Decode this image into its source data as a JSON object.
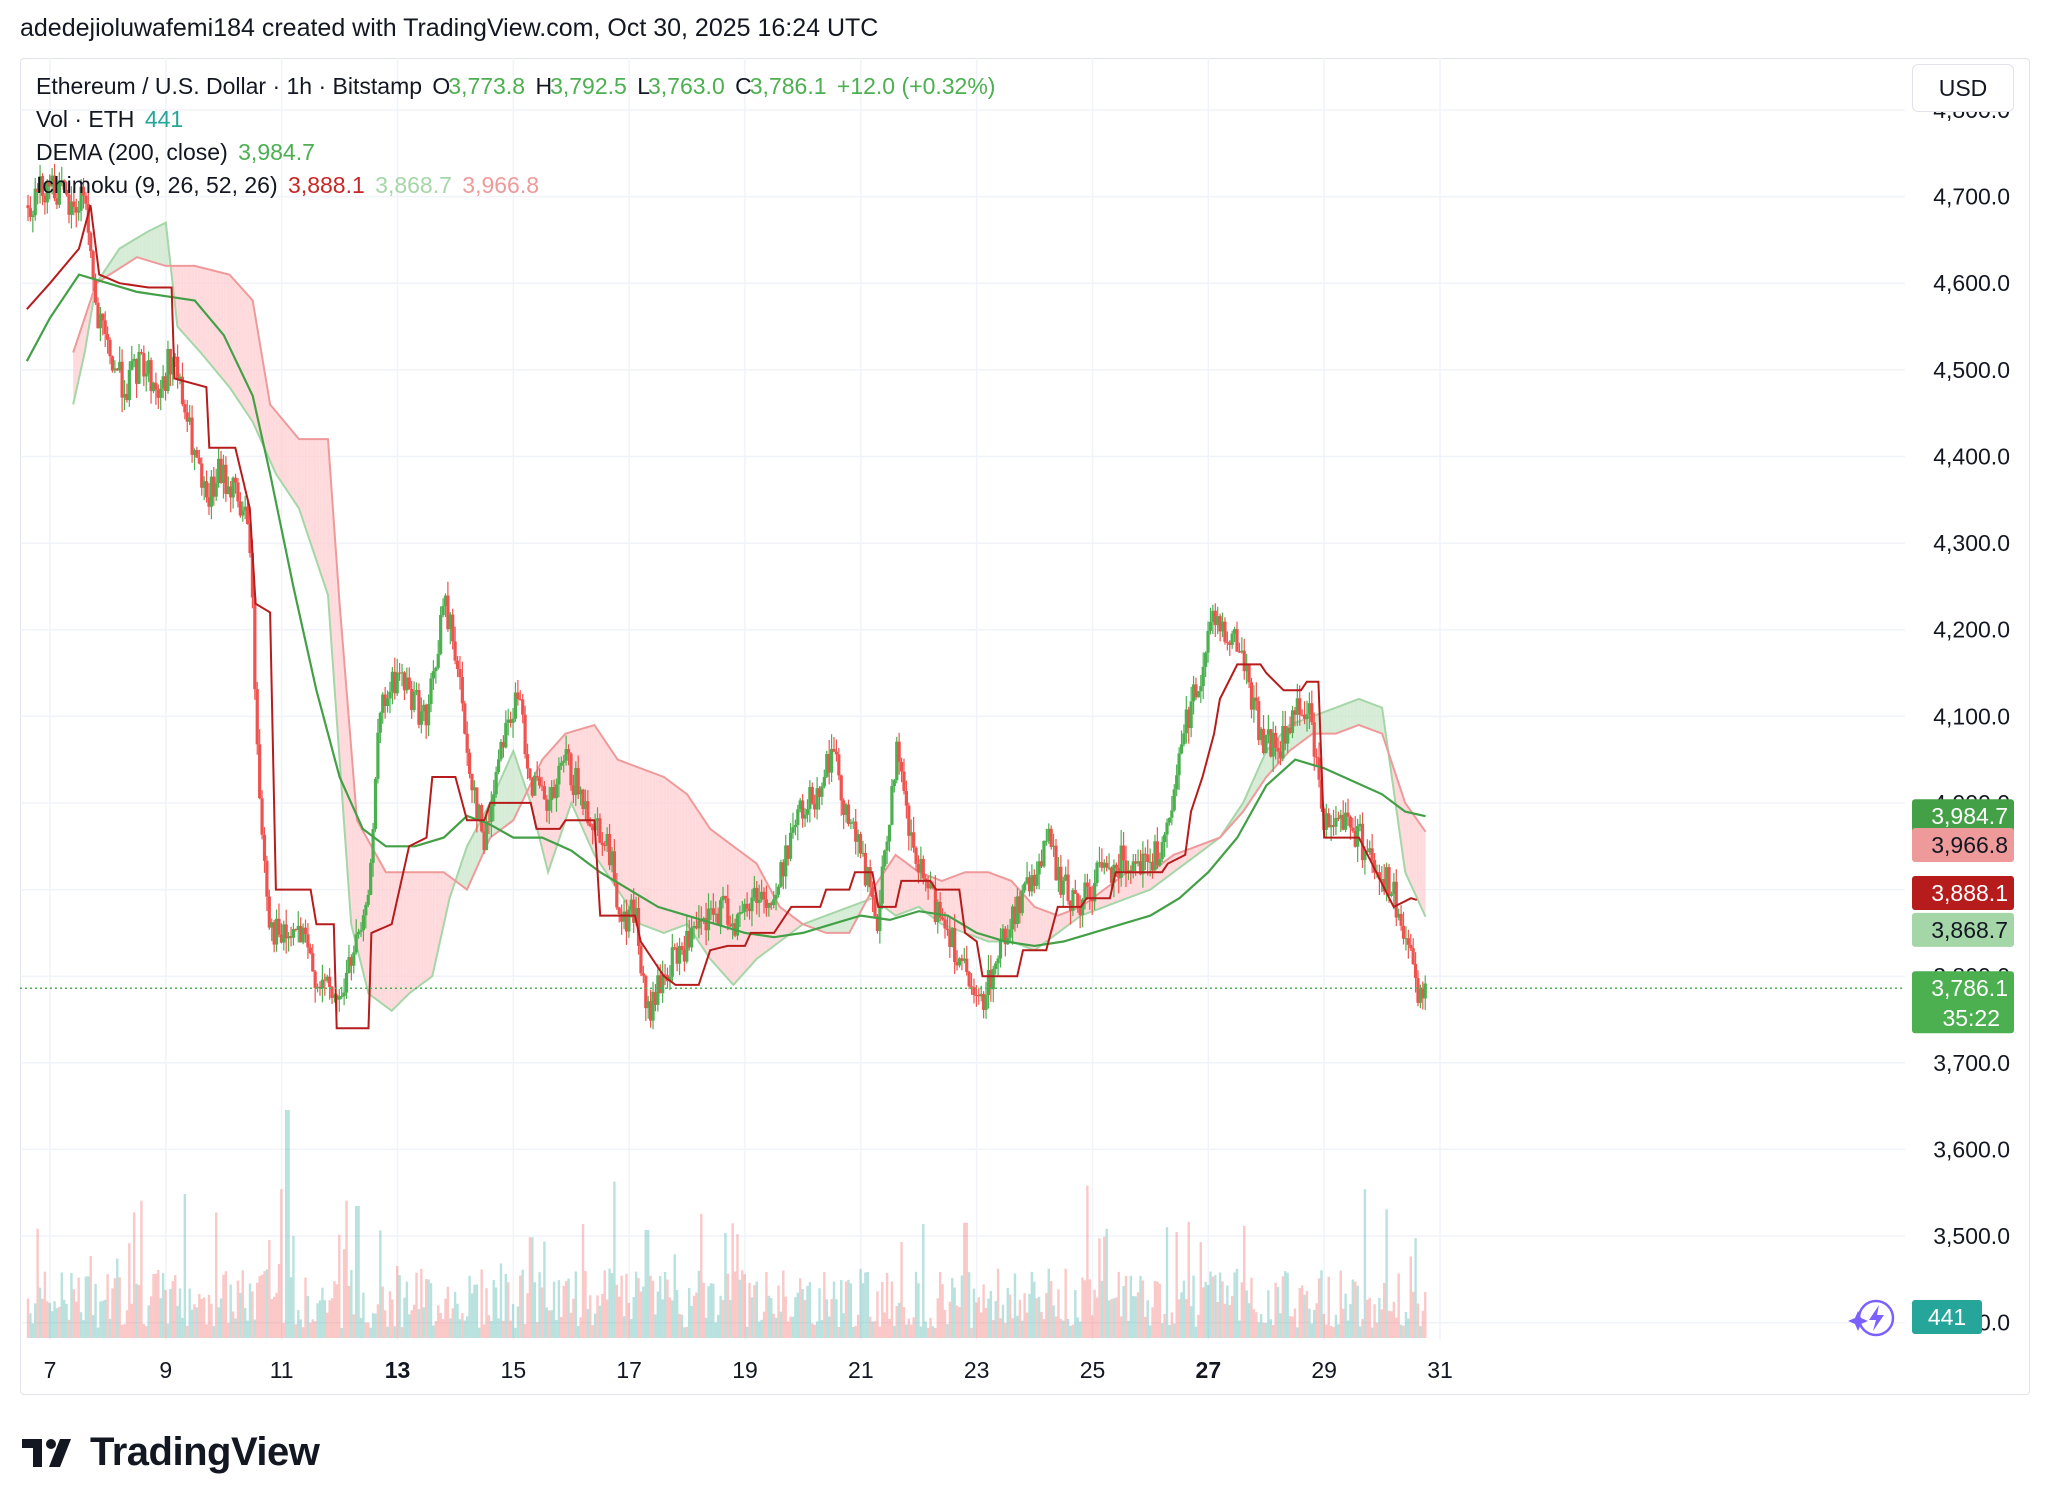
{
  "header": {
    "created_by": "adedejioluwafemi184 created with TradingView.com, Oct 30, 2025 16:24 UTC"
  },
  "legend": {
    "symbol": "Ethereum / U.S. Dollar · 1h · Bitstamp",
    "o_label": "O",
    "o_value": "3,773.8",
    "h_label": "H",
    "h_value": "3,792.5",
    "l_label": "L",
    "l_value": "3,763.0",
    "c_label": "C",
    "c_value": "3,786.1",
    "change": "+12.0 (+0.32%)",
    "vol_label": "Vol · ETH",
    "vol_value": "441",
    "dema_label": "DEMA (200, close)",
    "dema_value": "3,984.7",
    "ichimoku_label": "Ichimoku (9, 26, 52, 26)",
    "ichimoku_base": "3,888.1",
    "ichimoku_span_a": "3,868.7",
    "ichimoku_span_b": "3,966.8"
  },
  "currency_button": "USD",
  "price_badges": {
    "dema": "3,984.7",
    "span_b": "3,966.8",
    "base": "3,888.1",
    "span_a": "3,868.7",
    "last": "3,786.1",
    "countdown": "35:22",
    "volume": "441"
  },
  "brand": "TradingView",
  "colors": {
    "up": "#26a69a",
    "up_candle": "#4caf50",
    "down": "#ef5350",
    "dema": "#43a047",
    "base_line": "#b71c1c",
    "cloud_green": "#c8e6c9",
    "cloud_red": "#ffcdd2",
    "last_price": "#4caf50",
    "volume_teal": "#26a69a"
  },
  "chart_data": {
    "type": "candlestick",
    "title": "Ethereum / U.S. Dollar · 1h · Bitstamp",
    "y_ticks": [
      3400,
      3500,
      3600,
      3700,
      3800,
      3900,
      4000,
      4100,
      4200,
      4300,
      4400,
      4500,
      4600,
      4700,
      4800
    ],
    "y_tick_labels": [
      "3,400.0",
      "3,500.0",
      "3,600.0",
      "3,700.0",
      "3,800.0",
      "3,900.0",
      "4,000.0",
      "4,100.0",
      "4,200.0",
      "4,300.0",
      "4,400.0",
      "4,500.0",
      "4,600.0",
      "4,700.0",
      "4,800.0"
    ],
    "ylim": [
      3380,
      4860
    ],
    "x_labels": [
      {
        "day": 7,
        "text": "7",
        "bold": false
      },
      {
        "day": 9,
        "text": "9",
        "bold": false
      },
      {
        "day": 11,
        "text": "11",
        "bold": false
      },
      {
        "day": 13,
        "text": "13",
        "bold": true
      },
      {
        "day": 15,
        "text": "15",
        "bold": false
      },
      {
        "day": 17,
        "text": "17",
        "bold": false
      },
      {
        "day": 19,
        "text": "19",
        "bold": false
      },
      {
        "day": 21,
        "text": "21",
        "bold": false
      },
      {
        "day": 23,
        "text": "23",
        "bold": false
      },
      {
        "day": 25,
        "text": "25",
        "bold": false
      },
      {
        "day": 27,
        "text": "27",
        "bold": true
      },
      {
        "day": 29,
        "text": "29",
        "bold": false
      },
      {
        "day": 31,
        "text": "31",
        "bold": false
      }
    ],
    "xlim_days": [
      6.6,
      31.4
    ],
    "price_path": [
      [
        6.6,
        4690
      ],
      [
        7.0,
        4720
      ],
      [
        7.4,
        4680
      ],
      [
        7.6,
        4710
      ],
      [
        7.8,
        4560
      ],
      [
        8.0,
        4520
      ],
      [
        8.3,
        4480
      ],
      [
        8.6,
        4510
      ],
      [
        8.9,
        4470
      ],
      [
        9.1,
        4520
      ],
      [
        9.4,
        4430
      ],
      [
        9.7,
        4340
      ],
      [
        9.9,
        4380
      ],
      [
        10.2,
        4360
      ],
      [
        10.45,
        4310
      ],
      [
        10.6,
        4020
      ],
      [
        10.8,
        3860
      ],
      [
        11.0,
        3840
      ],
      [
        11.3,
        3850
      ],
      [
        11.6,
        3800
      ],
      [
        11.8,
        3780
      ],
      [
        12.0,
        3770
      ],
      [
        12.2,
        3820
      ],
      [
        12.45,
        3860
      ],
      [
        12.7,
        4100
      ],
      [
        13.0,
        4150
      ],
      [
        13.3,
        4120
      ],
      [
        13.5,
        4090
      ],
      [
        13.8,
        4230
      ],
      [
        14.0,
        4180
      ],
      [
        14.2,
        4060
      ],
      [
        14.5,
        3950
      ],
      [
        14.8,
        4080
      ],
      [
        15.1,
        4120
      ],
      [
        15.3,
        4030
      ],
      [
        15.6,
        3990
      ],
      [
        15.9,
        4050
      ],
      [
        16.2,
        4000
      ],
      [
        16.6,
        3960
      ],
      [
        16.9,
        3860
      ],
      [
        17.1,
        3880
      ],
      [
        17.3,
        3750
      ],
      [
        17.6,
        3800
      ],
      [
        17.9,
        3830
      ],
      [
        18.2,
        3850
      ],
      [
        18.6,
        3880
      ],
      [
        18.9,
        3860
      ],
      [
        19.2,
        3900
      ],
      [
        19.5,
        3880
      ],
      [
        19.8,
        3970
      ],
      [
        20.2,
        4010
      ],
      [
        20.5,
        4060
      ],
      [
        20.8,
        3980
      ],
      [
        21.0,
        3940
      ],
      [
        21.3,
        3860
      ],
      [
        21.6,
        4060
      ],
      [
        21.9,
        3940
      ],
      [
        22.2,
        3890
      ],
      [
        22.5,
        3860
      ],
      [
        22.8,
        3800
      ],
      [
        23.0,
        3760
      ],
      [
        23.3,
        3810
      ],
      [
        23.6,
        3870
      ],
      [
        23.9,
        3900
      ],
      [
        24.2,
        3960
      ],
      [
        24.5,
        3900
      ],
      [
        24.8,
        3880
      ],
      [
        25.1,
        3920
      ],
      [
        25.4,
        3930
      ],
      [
        25.7,
        3940
      ],
      [
        26.0,
        3930
      ],
      [
        26.3,
        3960
      ],
      [
        26.6,
        4090
      ],
      [
        26.9,
        4160
      ],
      [
        27.1,
        4220
      ],
      [
        27.3,
        4200
      ],
      [
        27.6,
        4170
      ],
      [
        27.9,
        4080
      ],
      [
        28.2,
        4060
      ],
      [
        28.5,
        4100
      ],
      [
        28.7,
        4120
      ],
      [
        29.0,
        3980
      ],
      [
        29.3,
        3990
      ],
      [
        29.6,
        3960
      ],
      [
        29.9,
        3930
      ],
      [
        30.2,
        3890
      ],
      [
        30.45,
        3830
      ],
      [
        30.6,
        3775
      ],
      [
        30.75,
        3786
      ]
    ],
    "dema_path": [
      [
        6.6,
        4510
      ],
      [
        7.0,
        4560
      ],
      [
        7.5,
        4610
      ],
      [
        8.0,
        4600
      ],
      [
        8.5,
        4590
      ],
      [
        9.0,
        4585
      ],
      [
        9.5,
        4580
      ],
      [
        10.0,
        4540
      ],
      [
        10.5,
        4470
      ],
      [
        10.8,
        4380
      ],
      [
        11.2,
        4250
      ],
      [
        11.6,
        4130
      ],
      [
        12.0,
        4030
      ],
      [
        12.4,
        3970
      ],
      [
        12.8,
        3950
      ],
      [
        13.3,
        3950
      ],
      [
        13.8,
        3960
      ],
      [
        14.2,
        3985
      ],
      [
        14.6,
        3975
      ],
      [
        15.0,
        3960
      ],
      [
        15.5,
        3960
      ],
      [
        16.0,
        3945
      ],
      [
        16.5,
        3920
      ],
      [
        17.0,
        3900
      ],
      [
        17.5,
        3880
      ],
      [
        18.0,
        3870
      ],
      [
        18.5,
        3860
      ],
      [
        19.0,
        3850
      ],
      [
        19.5,
        3845
      ],
      [
        20.0,
        3850
      ],
      [
        20.5,
        3860
      ],
      [
        21.0,
        3870
      ],
      [
        21.5,
        3865
      ],
      [
        22.0,
        3875
      ],
      [
        22.5,
        3870
      ],
      [
        23.0,
        3850
      ],
      [
        23.5,
        3840
      ],
      [
        24.0,
        3835
      ],
      [
        24.5,
        3840
      ],
      [
        25.0,
        3850
      ],
      [
        25.5,
        3860
      ],
      [
        26.0,
        3870
      ],
      [
        26.5,
        3890
      ],
      [
        27.0,
        3920
      ],
      [
        27.5,
        3960
      ],
      [
        28.0,
        4020
      ],
      [
        28.5,
        4050
      ],
      [
        29.0,
        4040
      ],
      [
        29.5,
        4025
      ],
      [
        30.0,
        4010
      ],
      [
        30.4,
        3990
      ],
      [
        30.75,
        3984.7
      ]
    ],
    "base_path": [
      [
        6.6,
        4570
      ],
      [
        7.0,
        4600
      ],
      [
        7.5,
        4640
      ],
      [
        7.7,
        4690
      ],
      [
        7.85,
        4610
      ],
      [
        8.2,
        4600
      ],
      [
        8.7,
        4595
      ],
      [
        9.1,
        4595
      ],
      [
        9.15,
        4490
      ],
      [
        9.7,
        4480
      ],
      [
        9.75,
        4410
      ],
      [
        10.2,
        4410
      ],
      [
        10.45,
        4340
      ],
      [
        10.55,
        4230
      ],
      [
        10.8,
        4220
      ],
      [
        10.9,
        3900
      ],
      [
        11.5,
        3900
      ],
      [
        11.6,
        3860
      ],
      [
        11.9,
        3860
      ],
      [
        11.95,
        3740
      ],
      [
        12.5,
        3740
      ],
      [
        12.55,
        3850
      ],
      [
        12.9,
        3860
      ],
      [
        13.2,
        3950
      ],
      [
        13.5,
        3960
      ],
      [
        13.6,
        4030
      ],
      [
        14.0,
        4030
      ],
      [
        14.2,
        3980
      ],
      [
        14.5,
        3980
      ],
      [
        14.6,
        4000
      ],
      [
        15.3,
        4000
      ],
      [
        15.4,
        3970
      ],
      [
        15.8,
        3970
      ],
      [
        15.9,
        3980
      ],
      [
        16.4,
        3980
      ],
      [
        16.5,
        3870
      ],
      [
        17.1,
        3870
      ],
      [
        17.2,
        3840
      ],
      [
        17.5,
        3810
      ],
      [
        17.6,
        3800
      ],
      [
        17.8,
        3790
      ],
      [
        18.2,
        3790
      ],
      [
        18.4,
        3830
      ],
      [
        18.7,
        3835
      ],
      [
        19.0,
        3835
      ],
      [
        19.1,
        3850
      ],
      [
        19.5,
        3850
      ],
      [
        19.8,
        3880
      ],
      [
        20.3,
        3880
      ],
      [
        20.4,
        3900
      ],
      [
        20.8,
        3900
      ],
      [
        20.9,
        3920
      ],
      [
        21.2,
        3920
      ],
      [
        21.3,
        3880
      ],
      [
        21.6,
        3880
      ],
      [
        21.7,
        3910
      ],
      [
        22.2,
        3910
      ],
      [
        22.3,
        3900
      ],
      [
        22.7,
        3900
      ],
      [
        22.8,
        3850
      ],
      [
        23.0,
        3840
      ],
      [
        23.1,
        3800
      ],
      [
        23.7,
        3800
      ],
      [
        23.8,
        3830
      ],
      [
        24.2,
        3830
      ],
      [
        24.4,
        3880
      ],
      [
        24.8,
        3880
      ],
      [
        24.9,
        3890
      ],
      [
        25.3,
        3890
      ],
      [
        25.4,
        3920
      ],
      [
        26.2,
        3920
      ],
      [
        26.3,
        3930
      ],
      [
        26.6,
        3940
      ],
      [
        26.7,
        3990
      ],
      [
        26.9,
        4030
      ],
      [
        27.1,
        4080
      ],
      [
        27.2,
        4120
      ],
      [
        27.5,
        4160
      ],
      [
        27.9,
        4160
      ],
      [
        28.0,
        4150
      ],
      [
        28.3,
        4130
      ],
      [
        28.6,
        4130
      ],
      [
        28.7,
        4140
      ],
      [
        28.9,
        4140
      ],
      [
        29.0,
        3960
      ],
      [
        29.5,
        3960
      ],
      [
        29.6,
        3960
      ],
      [
        29.9,
        3920
      ],
      [
        30.2,
        3880
      ],
      [
        30.5,
        3890
      ],
      [
        30.6,
        3888.1
      ]
    ],
    "cloud_a_path": [
      [
        7.4,
        4460
      ],
      [
        7.6,
        4520
      ],
      [
        7.8,
        4600
      ],
      [
        8.2,
        4640
      ],
      [
        8.7,
        4660
      ],
      [
        9.0,
        4670
      ],
      [
        9.2,
        4550
      ],
      [
        9.6,
        4520
      ],
      [
        10.1,
        4480
      ],
      [
        10.5,
        4440
      ],
      [
        10.9,
        4380
      ],
      [
        11.3,
        4340
      ],
      [
        11.8,
        4240
      ],
      [
        12.2,
        3860
      ],
      [
        12.5,
        3780
      ],
      [
        12.9,
        3760
      ],
      [
        13.2,
        3780
      ],
      [
        13.6,
        3800
      ],
      [
        13.9,
        3890
      ],
      [
        14.2,
        3950
      ],
      [
        14.6,
        4000
      ],
      [
        15.0,
        4060
      ],
      [
        15.3,
        4000
      ],
      [
        15.6,
        3920
      ],
      [
        16.0,
        4000
      ],
      [
        16.4,
        3940
      ],
      [
        16.8,
        3900
      ],
      [
        17.2,
        3860
      ],
      [
        17.6,
        3850
      ],
      [
        18.0,
        3860
      ],
      [
        18.4,
        3820
      ],
      [
        18.8,
        3790
      ],
      [
        19.2,
        3820
      ],
      [
        19.6,
        3840
      ],
      [
        20.0,
        3860
      ],
      [
        20.4,
        3870
      ],
      [
        20.8,
        3880
      ],
      [
        21.2,
        3890
      ],
      [
        21.6,
        3870
      ],
      [
        22.0,
        3880
      ],
      [
        22.4,
        3860
      ],
      [
        22.8,
        3850
      ],
      [
        23.2,
        3840
      ],
      [
        23.6,
        3840
      ],
      [
        24.0,
        3830
      ],
      [
        24.4,
        3850
      ],
      [
        24.8,
        3870
      ],
      [
        25.2,
        3880
      ],
      [
        25.6,
        3890
      ],
      [
        26.0,
        3900
      ],
      [
        26.4,
        3920
      ],
      [
        26.8,
        3940
      ],
      [
        27.2,
        3960
      ],
      [
        27.6,
        4000
      ],
      [
        28.0,
        4060
      ],
      [
        28.4,
        4090
      ],
      [
        28.8,
        4100
      ],
      [
        29.2,
        4110
      ],
      [
        29.6,
        4120
      ],
      [
        30.0,
        4110
      ],
      [
        30.4,
        3920
      ],
      [
        30.75,
        3868.7
      ]
    ],
    "cloud_b_path": [
      [
        7.4,
        4520
      ],
      [
        7.8,
        4600
      ],
      [
        8.5,
        4630
      ],
      [
        9.0,
        4620
      ],
      [
        9.5,
        4620
      ],
      [
        10.1,
        4610
      ],
      [
        10.5,
        4580
      ],
      [
        10.8,
        4460
      ],
      [
        11.3,
        4420
      ],
      [
        11.8,
        4420
      ],
      [
        12.0,
        4230
      ],
      [
        12.3,
        3980
      ],
      [
        12.8,
        3920
      ],
      [
        13.2,
        3920
      ],
      [
        13.8,
        3920
      ],
      [
        14.2,
        3900
      ],
      [
        14.6,
        3960
      ],
      [
        15.0,
        3980
      ],
      [
        15.5,
        4050
      ],
      [
        15.9,
        4080
      ],
      [
        16.4,
        4090
      ],
      [
        16.8,
        4050
      ],
      [
        17.2,
        4040
      ],
      [
        17.6,
        4030
      ],
      [
        18.0,
        4010
      ],
      [
        18.4,
        3970
      ],
      [
        18.8,
        3950
      ],
      [
        19.2,
        3930
      ],
      [
        19.6,
        3880
      ],
      [
        20.0,
        3860
      ],
      [
        20.4,
        3850
      ],
      [
        20.8,
        3850
      ],
      [
        21.2,
        3900
      ],
      [
        21.6,
        3940
      ],
      [
        22.0,
        3920
      ],
      [
        22.4,
        3910
      ],
      [
        22.8,
        3920
      ],
      [
        23.2,
        3920
      ],
      [
        23.6,
        3910
      ],
      [
        24.0,
        3880
      ],
      [
        24.4,
        3870
      ],
      [
        24.8,
        3880
      ],
      [
        25.2,
        3900
      ],
      [
        25.6,
        3920
      ],
      [
        26.0,
        3920
      ],
      [
        26.4,
        3940
      ],
      [
        26.8,
        3950
      ],
      [
        27.2,
        3960
      ],
      [
        27.6,
        3990
      ],
      [
        28.0,
        4030
      ],
      [
        28.4,
        4060
      ],
      [
        28.8,
        4080
      ],
      [
        29.2,
        4080
      ],
      [
        29.6,
        4090
      ],
      [
        30.0,
        4080
      ],
      [
        30.4,
        4000
      ],
      [
        30.75,
        3966.8
      ]
    ],
    "volume_spikes": [
      [
        11.1,
        0.95
      ],
      [
        11.0,
        0.62
      ],
      [
        12.3,
        0.55
      ],
      [
        13.0,
        0.3
      ],
      [
        15.3,
        0.42
      ],
      [
        17.3,
        0.45
      ],
      [
        21.7,
        0.4
      ],
      [
        22.8,
        0.48
      ],
      [
        29.7,
        0.62
      ],
      [
        30.5,
        0.34
      ]
    ],
    "last_price": 3786.1,
    "current_volume": 441
  }
}
